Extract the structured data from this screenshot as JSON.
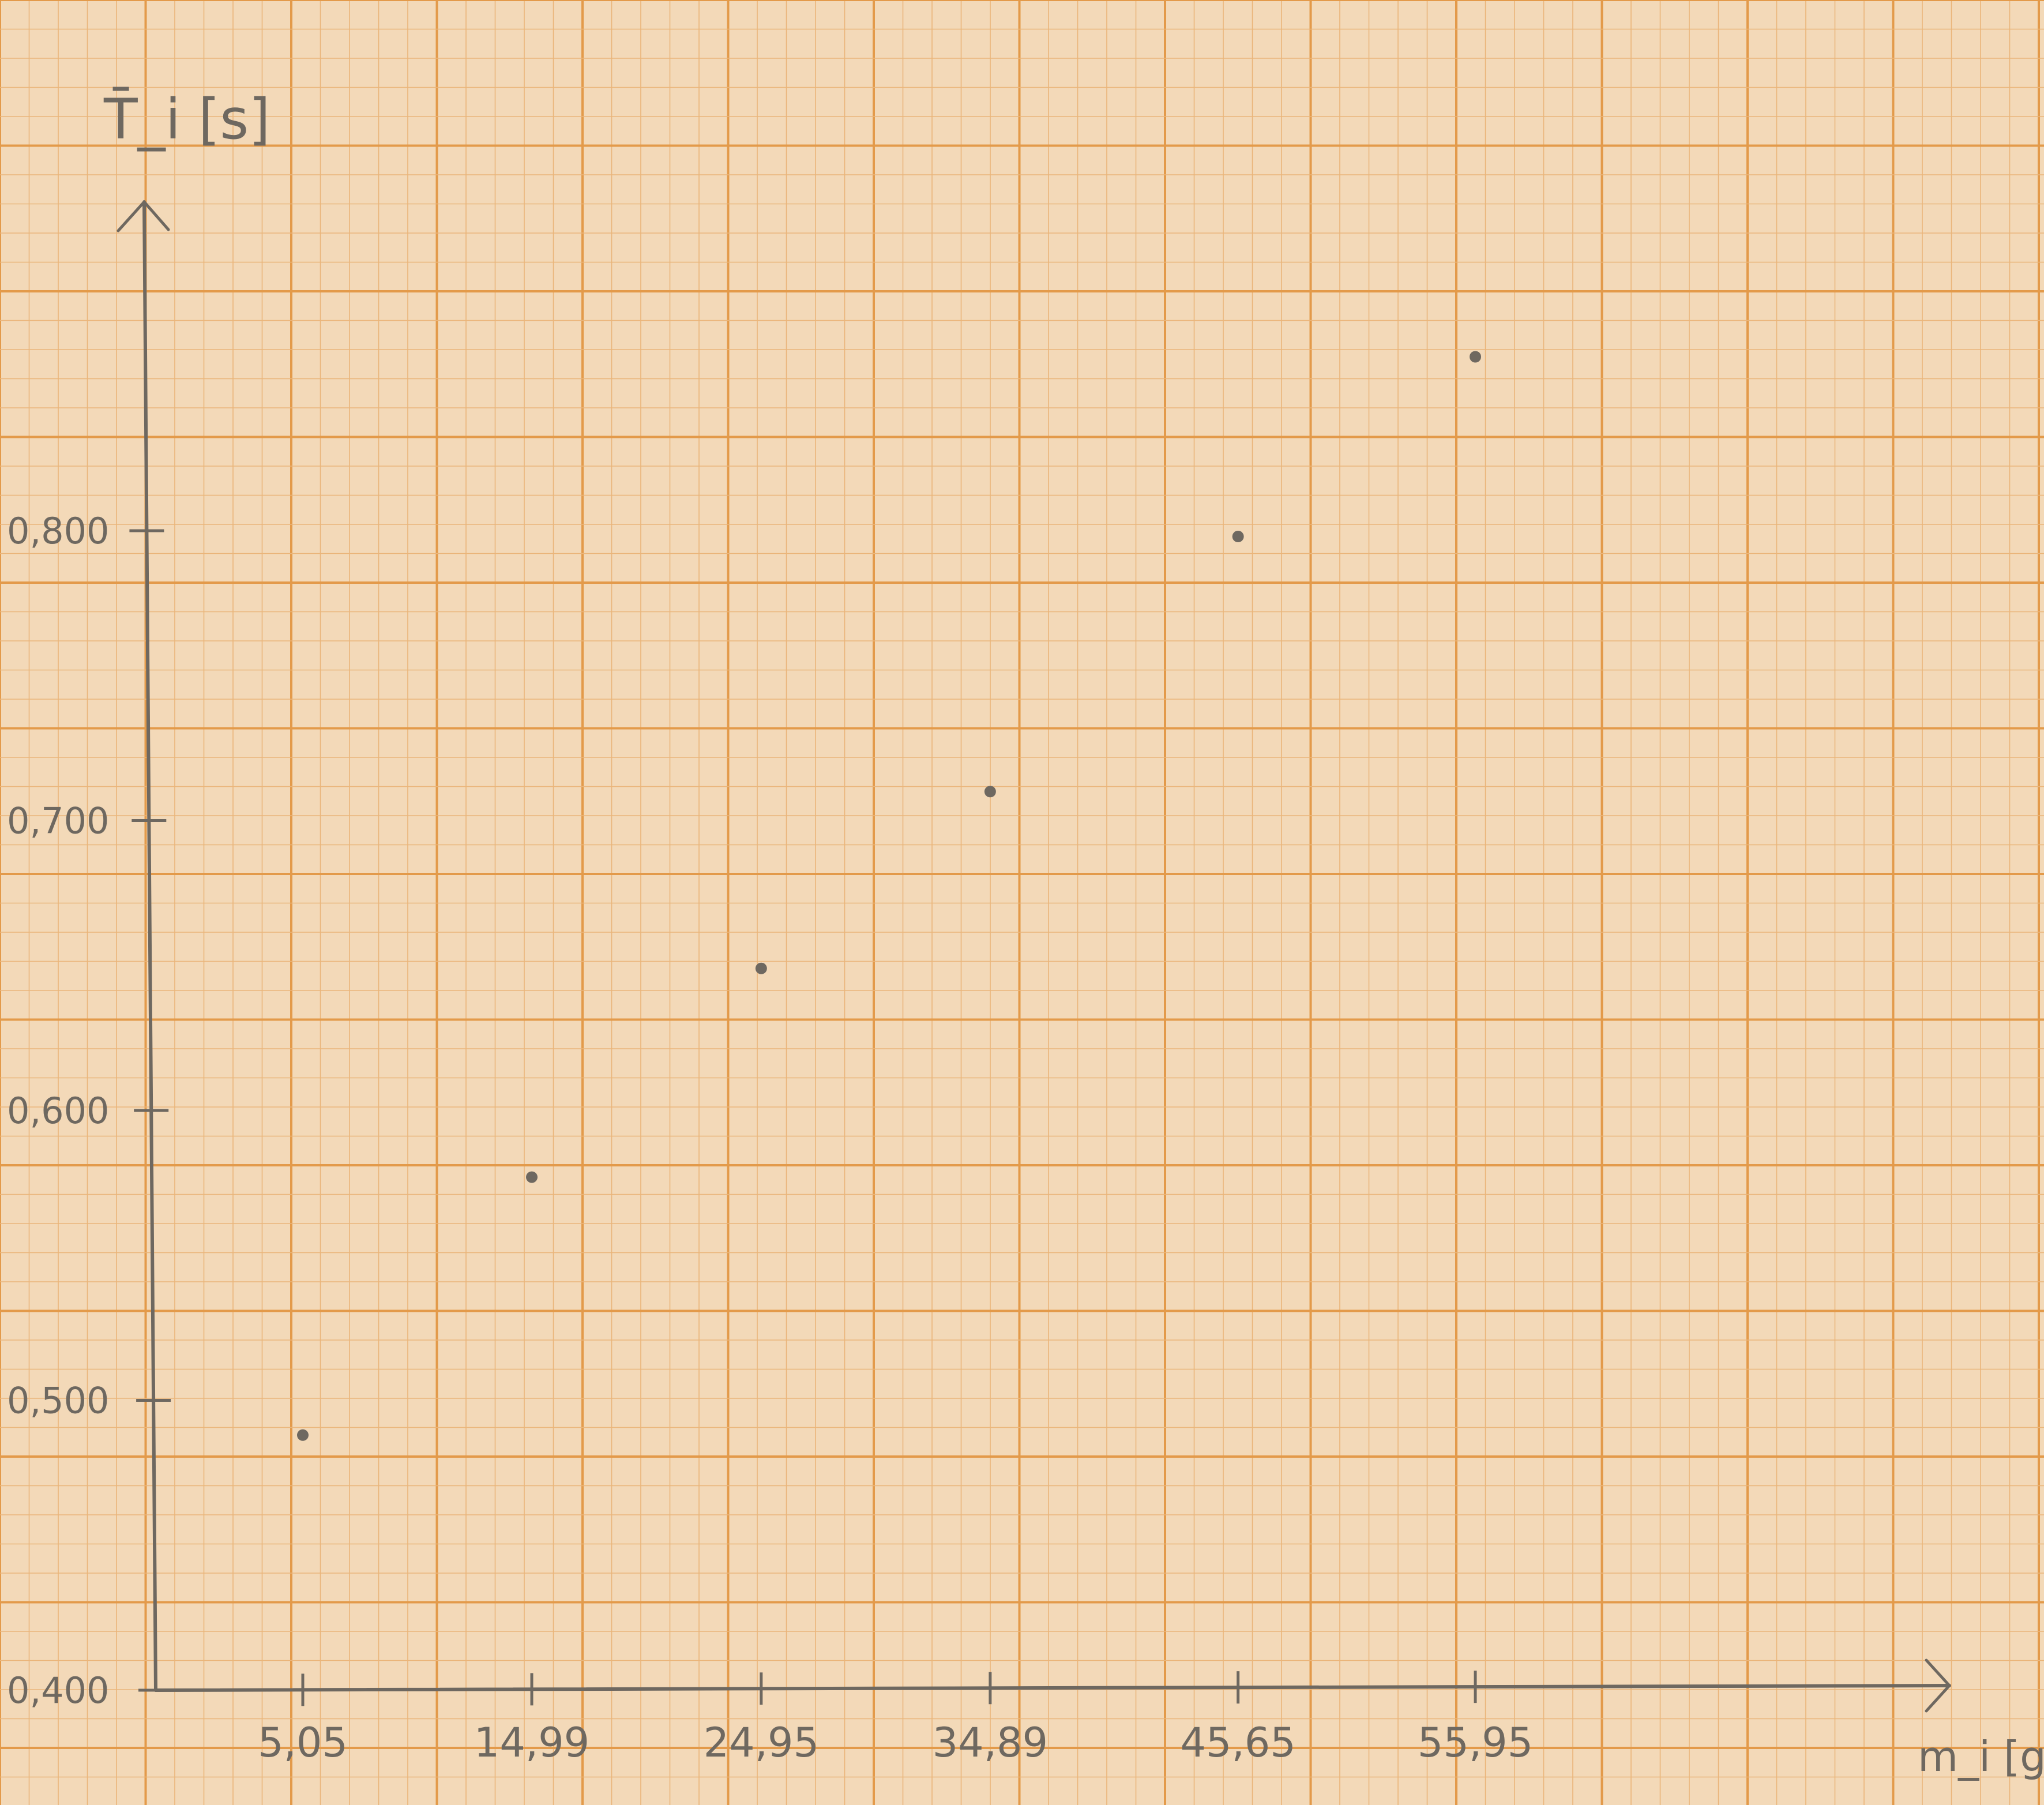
{
  "chart_data": {
    "type": "scatter",
    "title": "",
    "xlabel": "m_i [g]",
    "ylabel": "T̄_i [s]",
    "x_ticks": [
      "5,05",
      "14,99",
      "24,95",
      "34,89",
      "45,65",
      "55,95"
    ],
    "y_ticks": [
      "0,400",
      "0,500",
      "0,600",
      "0,700",
      "0,800"
    ],
    "x_tick_values": [
      5.05,
      14.99,
      24.95,
      34.89,
      45.65,
      55.95
    ],
    "y_tick_values": [
      0.4,
      0.5,
      0.6,
      0.7,
      0.8
    ],
    "xlim": [
      0,
      60
    ],
    "ylim": [
      0.4,
      0.96
    ],
    "grid": true,
    "series": [
      {
        "points": [
          {
            "x": 5.05,
            "y": 0.488
          },
          {
            "x": 14.99,
            "y": 0.577
          },
          {
            "x": 24.95,
            "y": 0.649
          },
          {
            "x": 34.89,
            "y": 0.71
          },
          {
            "x": 45.65,
            "y": 0.798
          },
          {
            "x": 55.95,
            "y": 0.86
          }
        ]
      }
    ],
    "colors": {
      "paper": "#f3d9b8",
      "grid_minor": "#eab57a",
      "grid_major": "#e39a4a",
      "pencil": "#6e6860"
    }
  }
}
